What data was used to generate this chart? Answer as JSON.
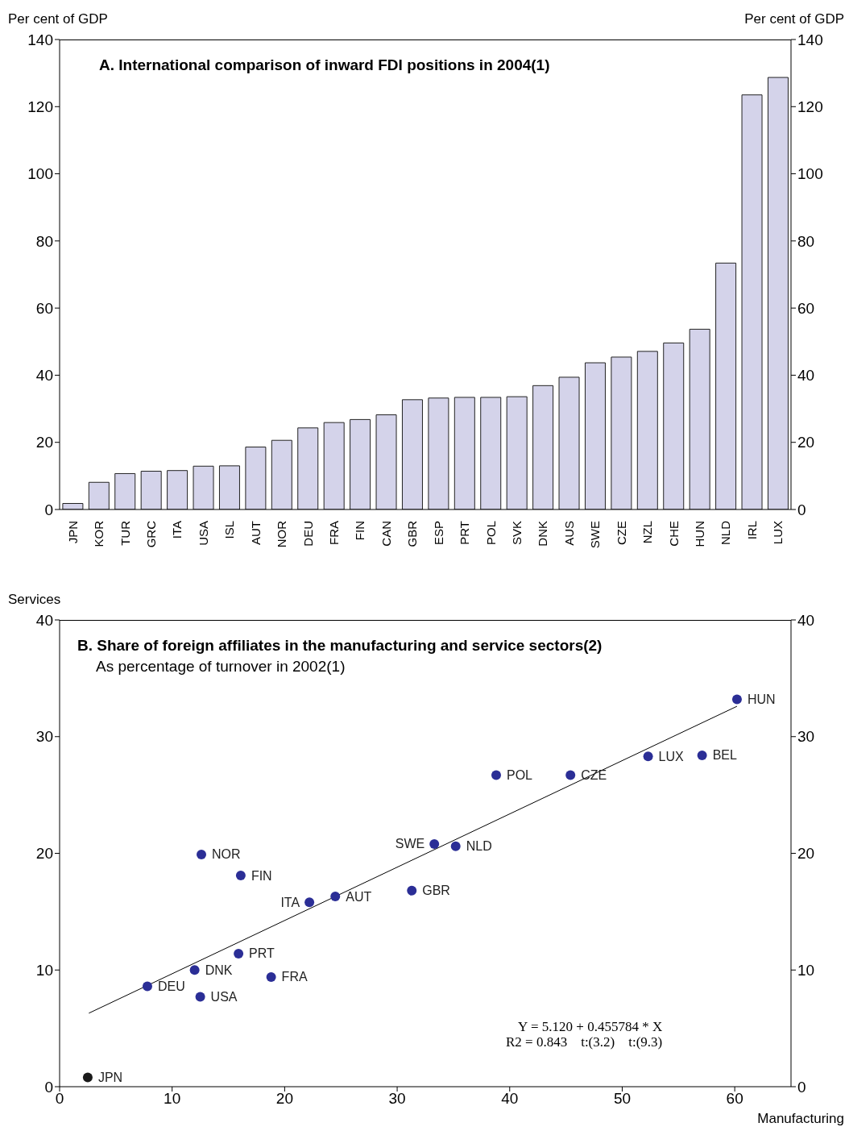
{
  "chart_data": [
    {
      "type": "bar",
      "title": "A. International comparison of inward FDI positions in 2004(1)",
      "ylabel": "Per cent of GDP",
      "y2label": "Per cent of GDP",
      "categories": [
        "JPN",
        "KOR",
        "TUR",
        "GRC",
        "ITA",
        "USA",
        "ISL",
        "AUT",
        "NOR",
        "DEU",
        "FRA",
        "FIN",
        "CAN",
        "GBR",
        "ESP",
        "PRT",
        "POL",
        "SVK",
        "DNK",
        "AUS",
        "SWE",
        "CZE",
        "NZL",
        "CHE",
        "HUN",
        "NLD",
        "IRL",
        "LUX"
      ],
      "values": [
        1.8,
        8.1,
        10.7,
        11.4,
        11.6,
        12.9,
        13.0,
        18.6,
        20.6,
        24.3,
        25.9,
        26.8,
        28.2,
        32.7,
        33.2,
        33.4,
        33.4,
        33.6,
        36.9,
        39.4,
        43.7,
        45.4,
        47.1,
        49.6,
        53.7,
        73.4,
        123.5,
        128.7
      ],
      "color": "#d4d3ea",
      "ylim": [
        0,
        140
      ],
      "yticks": [
        0,
        20,
        40,
        60,
        80,
        100,
        120,
        140
      ],
      "y2lim": [
        0,
        140
      ],
      "y2ticks": [
        0,
        20,
        40,
        60,
        80,
        100,
        120,
        140
      ]
    },
    {
      "type": "scatter",
      "title": "B. Share of foreign affiliates in the manufacturing and service sectors(2)",
      "subtitle": "As percentage of turnover in 2002(1)",
      "xlabel": "Manufacturing",
      "ylabel": "Services",
      "series": [
        {
          "color": "#2b2e96",
          "x": [
            60.2,
            57.1,
            52.3,
            45.4,
            38.8,
            33.3,
            35.2,
            31.3,
            24.5,
            22.2,
            12.6,
            16.1,
            15.9,
            12.0,
            7.8,
            12.5,
            18.8
          ],
          "values": [
            33.2,
            28.4,
            28.3,
            26.7,
            26.7,
            20.8,
            20.6,
            16.8,
            16.3,
            15.8,
            19.9,
            18.1,
            11.4,
            10.0,
            8.6,
            7.7,
            9.4
          ]
        },
        {
          "color": "#1a1a1a",
          "x": [
            2.5
          ],
          "values": [
            0.8
          ]
        },
        {
          "type": "line",
          "color": "#000000",
          "marker": "none",
          "x": [
            2.6,
            60.2
          ],
          "values": [
            6.3,
            32.6
          ]
        }
      ],
      "marker": "circle",
      "line_style": "solid",
      "xlim": [
        0,
        65
      ],
      "xticks": [
        0,
        10,
        20,
        30,
        40,
        50,
        60
      ],
      "ylim": [
        0,
        40
      ],
      "yticks": [
        0,
        10,
        20,
        30,
        40
      ],
      "y2lim": [
        0,
        40
      ],
      "y2ticks": [
        0,
        10,
        20,
        30,
        40
      ],
      "annotations": [
        {
          "text": "HUN",
          "x": 60.2,
          "y": 33.2
        },
        {
          "text": "BEL",
          "x": 57.1,
          "y": 28.4
        },
        {
          "text": "LUX",
          "x": 52.3,
          "y": 28.3
        },
        {
          "text": "CZE",
          "x": 45.4,
          "y": 26.7
        },
        {
          "text": "POL",
          "x": 38.8,
          "y": 26.7
        },
        {
          "text": "SWE",
          "x": 33.3,
          "y": 20.8
        },
        {
          "text": "NLD",
          "x": 35.2,
          "y": 20.6
        },
        {
          "text": "GBR",
          "x": 31.3,
          "y": 16.8
        },
        {
          "text": "AUT",
          "x": 24.5,
          "y": 16.3
        },
        {
          "text": "ITA",
          "x": 22.2,
          "y": 15.8
        },
        {
          "text": "NOR",
          "x": 12.6,
          "y": 19.9
        },
        {
          "text": "FIN",
          "x": 16.1,
          "y": 18.1
        },
        {
          "text": "PRT",
          "x": 15.9,
          "y": 11.4
        },
        {
          "text": "DNK",
          "x": 12.0,
          "y": 10.0
        },
        {
          "text": "DEU",
          "x": 7.8,
          "y": 8.6
        },
        {
          "text": "USA",
          "x": 12.5,
          "y": 7.7
        },
        {
          "text": "FRA",
          "x": 18.8,
          "y": 9.4
        },
        {
          "text": "JPN",
          "x": 2.5,
          "y": 0.8
        },
        "Y = 5.120 + 0.455784 * X",
        "R2 = 0.843    t:(3.2)    t:(9.3)"
      ]
    }
  ]
}
